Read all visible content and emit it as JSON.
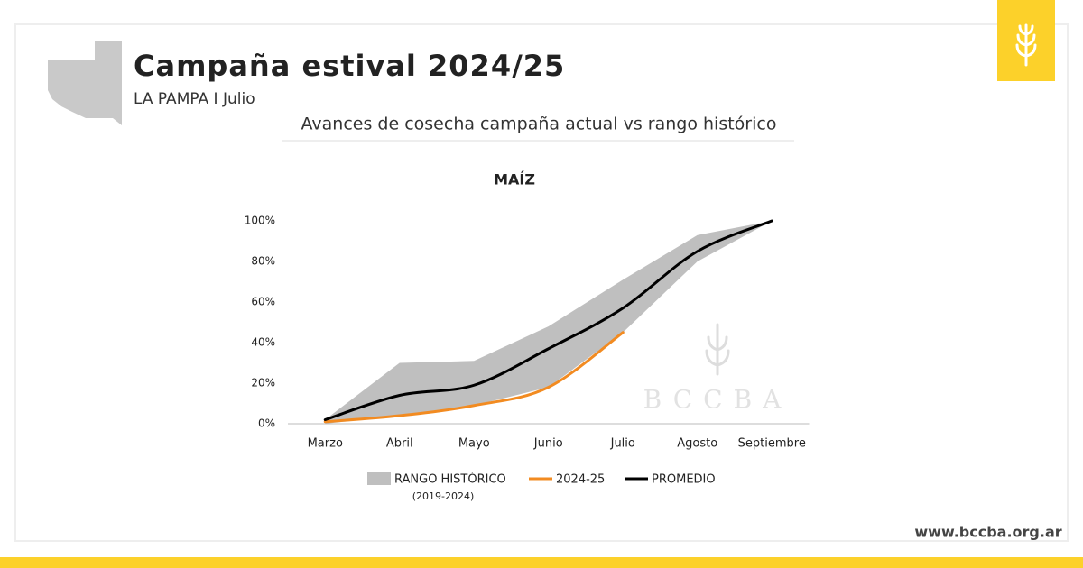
{
  "header": {
    "title": "Campaña estival 2024/25",
    "subtitle": "LA PAMPA I Julio",
    "heading": "Avances de cosecha campaña actual vs rango histórico"
  },
  "watermark": "BCCBA",
  "footer": "www.bccba.org.ar",
  "chart_data": {
    "type": "line",
    "title": "MAÍZ",
    "categories": [
      "Marzo",
      "Abril",
      "Mayo",
      "Junio",
      "Julio",
      "Agosto",
      "Septiembre"
    ],
    "ylim": [
      0,
      100
    ],
    "yticks": [
      {
        "value": 0,
        "label": "0%"
      },
      {
        "value": 20,
        "label": "20%"
      },
      {
        "value": 40,
        "label": "40%"
      },
      {
        "value": 60,
        "label": "60%"
      },
      {
        "value": 80,
        "label": "80%"
      },
      {
        "value": 100,
        "label": "100%"
      }
    ],
    "band": {
      "name": "RANGO HISTÓRICO",
      "note": "(2019-2024)",
      "color": "#bfbfbf",
      "low": [
        0,
        4,
        9,
        18,
        45,
        80,
        100
      ],
      "high": [
        2,
        30,
        31,
        48,
        71,
        93,
        100
      ]
    },
    "series": [
      {
        "name": "2024-25",
        "color": "#f28b21",
        "values": [
          1,
          4,
          9,
          18,
          45,
          null,
          null
        ]
      },
      {
        "name": "PROMEDIO",
        "color": "#000000",
        "values": [
          2,
          14,
          19,
          37,
          57,
          85,
          100
        ]
      }
    ]
  }
}
